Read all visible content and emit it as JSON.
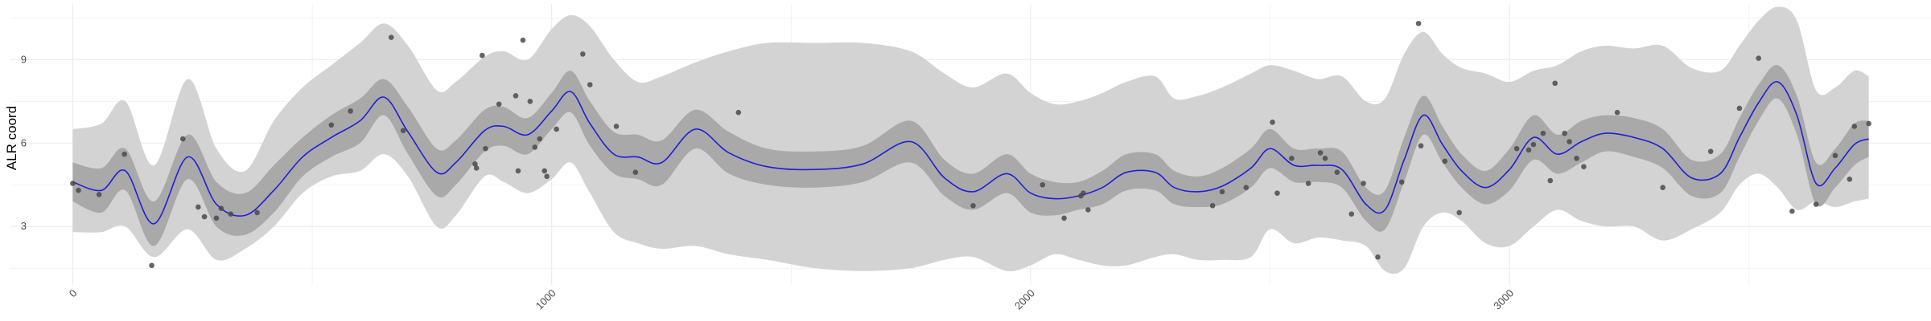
{
  "chart_data": {
    "type": "scatter",
    "title": "",
    "xlabel": "",
    "ylabel": "ALR coord",
    "xlim": [
      -130,
      3880
    ],
    "ylim": [
      0.9,
      11.0
    ],
    "x_ticks": [
      0,
      1000,
      2000,
      3000
    ],
    "y_ticks": [
      3,
      6,
      9
    ],
    "grid": true,
    "legend": "none",
    "colors": {
      "mean_line": "#1f1fd6",
      "inner_band": "#a9a9a9",
      "outer_band": "#d3d3d3",
      "points": "#4a4a4a",
      "grid": "#ebebeb"
    },
    "series": [
      {
        "type": "ribbon",
        "role": "outer_band",
        "x": [
          0,
          60,
          110,
          170,
          240,
          300,
          360,
          420,
          480,
          540,
          600,
          650,
          700,
          760,
          800,
          860,
          900,
          950,
          1000,
          1040,
          1080,
          1130,
          1180,
          1230,
          1300,
          1370,
          1450,
          1550,
          1650,
          1750,
          1820,
          1880,
          1950,
          2000,
          2050,
          2100,
          2150,
          2200,
          2260,
          2300,
          2350,
          2400,
          2460,
          2500,
          2550,
          2600,
          2650,
          2700,
          2740,
          2780,
          2820,
          2860,
          2900,
          2950,
          3000,
          3050,
          3100,
          3150,
          3200,
          3260,
          3320,
          3380,
          3440,
          3480,
          3520,
          3560,
          3600,
          3640,
          3680,
          3720,
          3750
        ],
        "upper": [
          6.5,
          6.7,
          7.5,
          5.2,
          8.3,
          5.8,
          5.0,
          6.8,
          8.0,
          8.8,
          9.6,
          10.3,
          9.5,
          7.9,
          8.2,
          9.1,
          9.3,
          9.0,
          10.1,
          10.6,
          10.2,
          9.0,
          8.2,
          8.4,
          8.9,
          9.3,
          9.6,
          9.6,
          9.6,
          9.3,
          8.5,
          8.0,
          8.5,
          7.8,
          7.4,
          7.5,
          7.8,
          8.2,
          8.4,
          7.6,
          7.7,
          8.0,
          8.5,
          8.8,
          8.6,
          8.3,
          8.4,
          7.5,
          7.6,
          9.2,
          10.0,
          9.2,
          8.7,
          8.5,
          8.2,
          8.6,
          8.8,
          9.3,
          9.5,
          9.4,
          9.5,
          8.7,
          8.6,
          9.5,
          10.4,
          10.9,
          10.4,
          7.9,
          8.0,
          8.6,
          8.4
        ],
        "lower": [
          2.8,
          2.8,
          3.0,
          1.9,
          2.9,
          1.8,
          2.2,
          3.0,
          4.2,
          4.8,
          5.0,
          5.6,
          4.8,
          3.0,
          3.4,
          4.8,
          4.6,
          4.2,
          4.7,
          5.3,
          4.2,
          2.8,
          2.4,
          2.2,
          2.3,
          2.0,
          1.8,
          1.5,
          1.4,
          1.5,
          1.8,
          1.9,
          1.4,
          1.6,
          2.0,
          1.8,
          1.6,
          1.6,
          1.9,
          2.0,
          1.8,
          1.8,
          1.9,
          2.9,
          2.4,
          2.6,
          2.5,
          2.3,
          1.4,
          1.5,
          3.0,
          3.5,
          3.2,
          2.4,
          2.3,
          3.0,
          3.6,
          3.2,
          3.0,
          3.0,
          2.5,
          2.9,
          3.5,
          4.5,
          4.9,
          4.4,
          3.6,
          3.9,
          3.7,
          3.9,
          4.0
        ]
      },
      {
        "type": "ribbon",
        "role": "inner_band",
        "x": [
          0,
          60,
          110,
          170,
          240,
          300,
          360,
          420,
          480,
          540,
          600,
          650,
          700,
          760,
          800,
          860,
          900,
          950,
          1000,
          1040,
          1080,
          1130,
          1180,
          1230,
          1300,
          1370,
          1450,
          1550,
          1650,
          1750,
          1820,
          1880,
          1950,
          2000,
          2050,
          2100,
          2150,
          2200,
          2260,
          2300,
          2350,
          2400,
          2460,
          2500,
          2550,
          2600,
          2650,
          2700,
          2740,
          2780,
          2820,
          2860,
          2900,
          2950,
          3000,
          3050,
          3100,
          3150,
          3200,
          3260,
          3320,
          3380,
          3440,
          3480,
          3520,
          3560,
          3600,
          3640,
          3680,
          3720,
          3750
        ],
        "upper": [
          5.3,
          5.1,
          5.8,
          3.9,
          6.3,
          4.6,
          4.2,
          5.2,
          6.2,
          7.0,
          7.6,
          8.3,
          7.3,
          5.8,
          6.1,
          7.2,
          7.3,
          6.9,
          7.8,
          8.6,
          7.5,
          6.4,
          6.3,
          6.1,
          7.2,
          6.4,
          5.8,
          5.7,
          5.9,
          6.8,
          5.4,
          4.9,
          5.6,
          4.9,
          4.6,
          4.6,
          5.0,
          5.6,
          5.6,
          5.0,
          4.8,
          5.1,
          5.8,
          6.5,
          5.8,
          5.8,
          5.7,
          4.4,
          4.3,
          6.2,
          7.7,
          6.6,
          5.6,
          5.0,
          5.8,
          7.0,
          6.3,
          6.8,
          7.0,
          6.9,
          6.5,
          5.4,
          5.6,
          6.9,
          8.1,
          8.8,
          7.7,
          5.3,
          5.8,
          6.7,
          6.8
        ],
        "lower": [
          3.9,
          3.5,
          4.3,
          2.3,
          4.7,
          3.0,
          2.7,
          3.5,
          4.8,
          5.5,
          6.0,
          7.0,
          5.6,
          4.1,
          4.5,
          5.7,
          5.9,
          5.6,
          6.5,
          7.1,
          5.9,
          4.9,
          4.7,
          4.5,
          5.8,
          4.9,
          4.5,
          4.4,
          4.6,
          5.3,
          4.1,
          3.6,
          4.2,
          3.5,
          3.4,
          3.6,
          3.8,
          4.3,
          4.3,
          3.8,
          3.7,
          3.8,
          4.4,
          5.1,
          4.6,
          4.6,
          4.4,
          3.2,
          2.9,
          4.6,
          6.3,
          5.3,
          4.4,
          3.8,
          4.3,
          5.4,
          4.9,
          5.3,
          5.7,
          5.5,
          5.1,
          4.1,
          4.2,
          5.5,
          6.8,
          7.6,
          6.3,
          3.8,
          4.4,
          5.2,
          5.5
        ]
      },
      {
        "type": "line",
        "role": "mean_line",
        "x": [
          0,
          60,
          110,
          170,
          240,
          300,
          360,
          420,
          480,
          540,
          600,
          650,
          700,
          760,
          800,
          860,
          900,
          950,
          1000,
          1040,
          1080,
          1130,
          1180,
          1230,
          1300,
          1370,
          1450,
          1550,
          1650,
          1750,
          1820,
          1880,
          1950,
          2000,
          2050,
          2100,
          2150,
          2200,
          2260,
          2300,
          2350,
          2400,
          2460,
          2500,
          2550,
          2600,
          2650,
          2700,
          2740,
          2780,
          2820,
          2860,
          2900,
          2950,
          3000,
          3050,
          3100,
          3150,
          3200,
          3260,
          3320,
          3380,
          3440,
          3480,
          3520,
          3560,
          3600,
          3640,
          3680,
          3720,
          3750
        ],
        "values": [
          4.6,
          4.3,
          5.0,
          3.1,
          5.5,
          3.8,
          3.4,
          4.3,
          5.5,
          6.2,
          6.8,
          7.65,
          6.4,
          4.95,
          5.3,
          6.45,
          6.6,
          6.3,
          7.15,
          7.85,
          6.7,
          5.6,
          5.5,
          5.3,
          6.5,
          5.65,
          5.15,
          5.05,
          5.25,
          6.05,
          4.75,
          4.25,
          4.9,
          4.2,
          4.0,
          4.1,
          4.4,
          4.95,
          4.95,
          4.4,
          4.25,
          4.45,
          5.1,
          5.8,
          5.2,
          5.2,
          5.05,
          3.8,
          3.6,
          5.4,
          7.0,
          5.95,
          5.0,
          4.4,
          5.05,
          6.2,
          5.6,
          6.05,
          6.35,
          6.2,
          5.8,
          4.75,
          4.9,
          6.2,
          7.45,
          8.2,
          7.0,
          4.55,
          5.1,
          5.95,
          6.15
        ]
      },
      {
        "type": "points",
        "role": "points",
        "x": [
          0,
          12,
          55,
          108,
          165,
          230,
          262,
          275,
          300,
          310,
          330,
          385,
          540,
          580,
          665,
          690,
          840,
          843,
          855,
          862,
          890,
          925,
          930,
          940,
          955,
          965,
          975,
          985,
          990,
          1010,
          1065,
          1080,
          1135,
          1175,
          1390,
          1880,
          2025,
          2070,
          2105,
          2110,
          2120,
          2380,
          2400,
          2450,
          2505,
          2515,
          2545,
          2580,
          2605,
          2615,
          2640,
          2670,
          2695,
          2725,
          2775,
          2810,
          2815,
          2865,
          2895,
          3015,
          3040,
          3050,
          3070,
          3085,
          3095,
          3115,
          3125,
          3140,
          3155,
          3225,
          3320,
          3420,
          3480,
          3520,
          3590,
          3640,
          3680,
          3710,
          3720,
          3750
        ],
        "values": [
          4.55,
          4.3,
          4.15,
          5.6,
          1.6,
          6.15,
          3.7,
          3.35,
          3.3,
          3.65,
          3.45,
          3.5,
          6.65,
          7.15,
          9.8,
          6.45,
          5.25,
          5.1,
          9.15,
          5.8,
          7.4,
          7.7,
          5.0,
          9.7,
          7.5,
          5.85,
          6.15,
          5.0,
          4.8,
          6.5,
          9.2,
          8.1,
          6.6,
          4.95,
          7.1,
          3.75,
          4.5,
          3.3,
          4.1,
          4.2,
          3.6,
          3.75,
          4.25,
          4.4,
          6.75,
          4.2,
          5.45,
          4.55,
          5.65,
          5.45,
          4.95,
          3.45,
          4.55,
          1.9,
          4.6,
          10.3,
          5.9,
          5.35,
          3.5,
          5.8,
          5.75,
          5.95,
          6.35,
          4.65,
          8.15,
          6.35,
          6.05,
          5.45,
          5.15,
          7.1,
          4.4,
          5.7,
          7.25,
          9.05,
          3.55,
          3.8,
          5.55,
          4.7,
          6.6,
          6.7
        ]
      }
    ]
  }
}
